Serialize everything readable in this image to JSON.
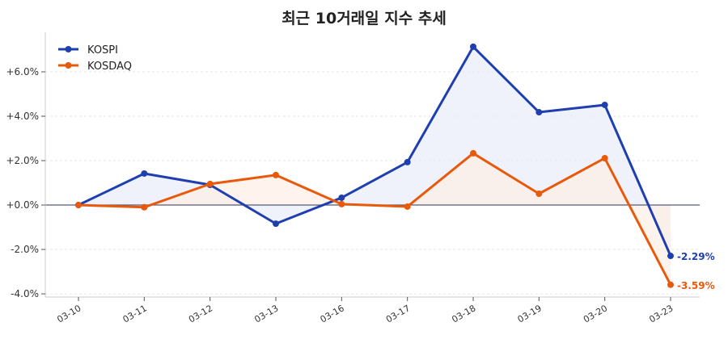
{
  "chart_data": {
    "type": "line",
    "title": "최근 10거래일 지수 추세",
    "xlabel": "",
    "ylabel": "",
    "categories": [
      "03-10",
      "03-11",
      "03-12",
      "03-13",
      "03-16",
      "03-17",
      "03-18",
      "03-19",
      "03-20",
      "03-23"
    ],
    "ylim": [
      -4.07,
      7.78
    ],
    "yticks": [
      -4,
      -2,
      0,
      2,
      4,
      6
    ],
    "ytick_labels": [
      "-4.0%",
      "-2.0%",
      "+0.0%",
      "+2.0%",
      "+4.0%",
      "+6.0%"
    ],
    "grid": true,
    "legend_position": "top-left",
    "series": [
      {
        "name": "KOSPI",
        "color": "#1f3fb0",
        "fill": "#e8ecf8",
        "values": [
          0,
          1.42,
          0.91,
          -0.84,
          0.33,
          1.93,
          7.13,
          4.18,
          4.51,
          -2.29
        ],
        "end_label": "-2.29%"
      },
      {
        "name": "KOSDAQ",
        "color": "#e8590c",
        "fill": "#fdf0e6",
        "values": [
          0,
          -0.1,
          0.95,
          1.35,
          0.04,
          -0.07,
          2.33,
          0.51,
          2.11,
          -3.59
        ],
        "end_label": "-3.59%"
      }
    ]
  }
}
